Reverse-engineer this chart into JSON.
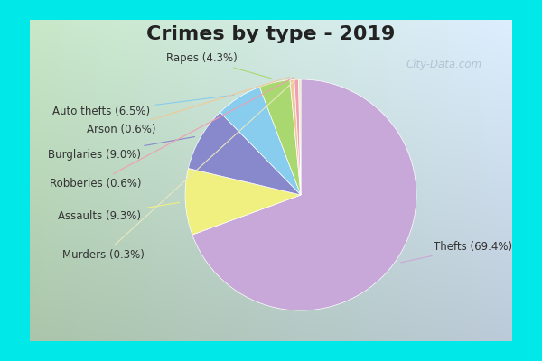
{
  "title": "Crimes by type - 2019",
  "labels": [
    "Thefts",
    "Assaults",
    "Burglaries",
    "Auto thefts",
    "Rapes",
    "Arson",
    "Robberies",
    "Murders"
  ],
  "percentages": [
    69.4,
    9.3,
    9.0,
    6.5,
    4.3,
    0.6,
    0.6,
    0.3
  ],
  "colors": [
    "#c8a8d8",
    "#f0f080",
    "#8888cc",
    "#88ccee",
    "#aad870",
    "#f0c898",
    "#f0a0b0",
    "#e8e8c0"
  ],
  "title_fontsize": 16,
  "label_fontsize": 8.5,
  "bg_cyan": "#00e8e8",
  "bg_gradient_left": "#c8e8c8",
  "bg_gradient_right": "#d8eef8",
  "startangle": 90,
  "counterclock": false,
  "watermark": "City-Data.com",
  "label_positions": {
    "Thefts": [
      1.15,
      -0.45,
      "left"
    ],
    "Assaults": [
      -1.38,
      -0.18,
      "right"
    ],
    "Burglaries": [
      -1.38,
      0.35,
      "right"
    ],
    "Auto thefts": [
      -1.3,
      0.72,
      "right"
    ],
    "Rapes": [
      -0.55,
      1.18,
      "right"
    ],
    "Arson": [
      -1.25,
      0.57,
      "right"
    ],
    "Robberies": [
      -1.38,
      0.1,
      "right"
    ],
    "Murders": [
      -1.35,
      -0.52,
      "right"
    ]
  }
}
